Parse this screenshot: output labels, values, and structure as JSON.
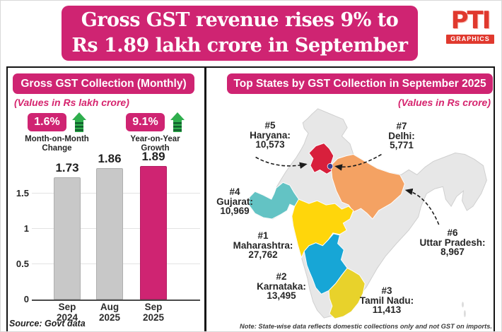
{
  "header": {
    "title_line1": "Gross GST revenue rises 9% to",
    "title_line2": "Rs 1.89 lakh crore in September"
  },
  "logo": {
    "name": "PTI",
    "sub": "GRAPHICS"
  },
  "left_panel": {
    "title": "Gross GST Collection (Monthly)",
    "subtitle": "(Values in Rs lakh crore)",
    "stats": [
      {
        "value": "1.6%",
        "label_line1": "Month-on-Month",
        "label_line2": "Change"
      },
      {
        "value": "9.1%",
        "label_line1": "Year-on-Year",
        "label_line2": "Growth"
      }
    ],
    "source": "Source: Govt data"
  },
  "chart_data": {
    "type": "bar",
    "categories": [
      "Sep 2024",
      "Aug 2025",
      "Sep 2025"
    ],
    "values": [
      1.73,
      1.86,
      1.89
    ],
    "title": "Gross GST Collection (Monthly)",
    "xlabel": "",
    "ylabel": "Rs lakh crore",
    "ylim": [
      0,
      1.95
    ],
    "yticks": [
      0,
      0.5,
      1,
      1.5
    ],
    "grid": "horizontal",
    "bar_colors": [
      "#c8c8c8",
      "#c8c8c8",
      "#cf2472"
    ]
  },
  "right_panel": {
    "title": "Top States by GST Collection in September 2025",
    "subtitle": "(Values in Rs crore)",
    "states": [
      {
        "rank": "#1",
        "name": "Maharashtra:",
        "value": "27,762",
        "color": "#ffd60b"
      },
      {
        "rank": "#2",
        "name": "Karnataka:",
        "value": "13,495",
        "color": "#17a6d6"
      },
      {
        "rank": "#3",
        "name": "Tamil Nadu:",
        "value": "11,413",
        "color": "#e8d22b"
      },
      {
        "rank": "#4",
        "name": "Gujarat:",
        "value": "10,969",
        "color": "#63c3c4"
      },
      {
        "rank": "#5",
        "name": "Haryana:",
        "value": "10,573",
        "color": "#d8203c"
      },
      {
        "rank": "#6",
        "name": "Uttar Pradesh:",
        "value": "8,967",
        "color": "#f4a263"
      },
      {
        "rank": "#7",
        "name": "Delhi:",
        "value": "5,771",
        "color": "#3b3f92"
      }
    ],
    "note": "Note: State-wise data reflects domestic collections only and not GST on imports."
  },
  "colors": {
    "accent_pink": "#cf2472",
    "green_arrow": "#2fae4d",
    "map_base": "#e7e7e7",
    "logo_red": "#e0392e"
  }
}
